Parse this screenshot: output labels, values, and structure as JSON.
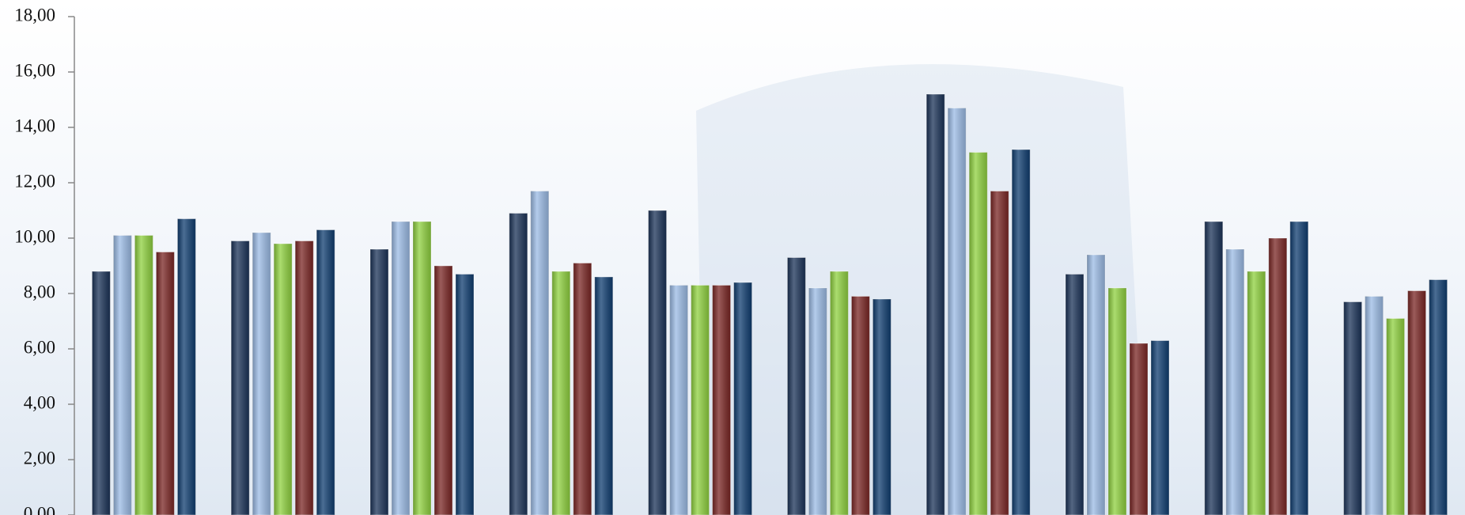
{
  "chart_data": {
    "type": "bar",
    "categories": [
      null,
      null,
      null,
      null,
      null,
      null,
      null,
      null,
      null,
      null
    ],
    "series": [
      {
        "color": "#1b3358",
        "values": [
          8.8,
          9.9,
          9.6,
          10.9,
          11.0,
          9.3,
          15.2,
          8.7,
          10.6,
          7.7
        ]
      },
      {
        "color": "#9bbbe5",
        "values": [
          10.1,
          10.2,
          10.6,
          11.7,
          8.3,
          8.2,
          14.7,
          9.4,
          9.6,
          7.9
        ]
      },
      {
        "color": "#8fd13f",
        "values": [
          10.1,
          9.8,
          10.6,
          8.8,
          8.3,
          8.8,
          13.1,
          8.2,
          8.8,
          7.1
        ]
      },
      {
        "color": "#7a2624",
        "values": [
          9.5,
          9.9,
          9.0,
          9.1,
          8.3,
          7.9,
          11.7,
          6.2,
          10.0,
          8.1
        ]
      },
      {
        "color": "#0f3d70",
        "values": [
          10.7,
          10.3,
          8.7,
          8.6,
          8.4,
          7.8,
          13.2,
          6.3,
          10.6,
          8.5
        ]
      }
    ],
    "ylim": [
      0,
      18
    ],
    "yticks": [
      {
        "value": 0,
        "label": "0,00"
      },
      {
        "value": 2,
        "label": "2,00"
      },
      {
        "value": 4,
        "label": "4,00"
      },
      {
        "value": 6,
        "label": "6,00"
      },
      {
        "value": 8,
        "label": "8,00"
      },
      {
        "value": 10,
        "label": "10,00"
      },
      {
        "value": 12,
        "label": "12,00"
      },
      {
        "value": 14,
        "label": "14,00"
      },
      {
        "value": 16,
        "label": "16,00"
      },
      {
        "value": 18,
        "label": "18,00"
      }
    ]
  }
}
